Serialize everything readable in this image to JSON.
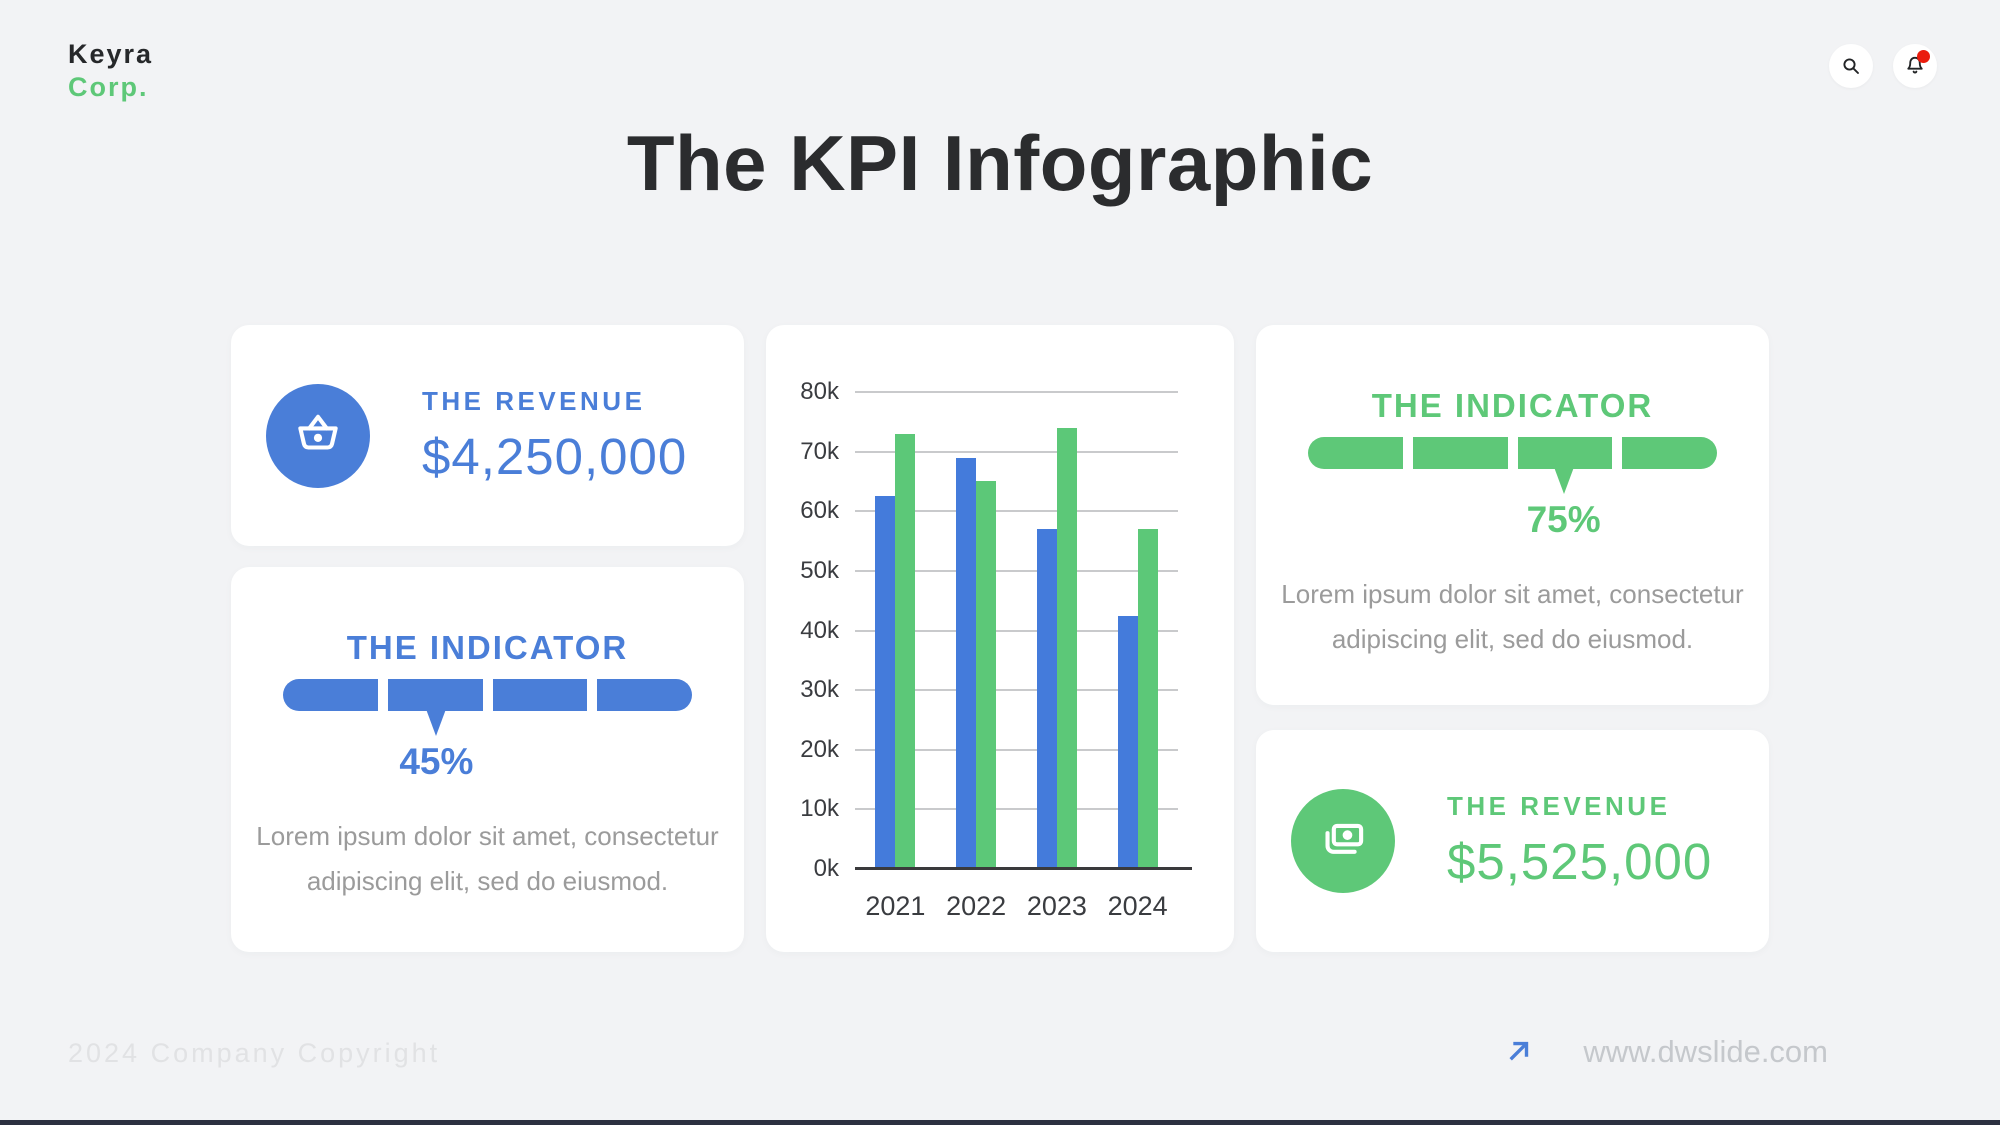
{
  "brand": {
    "line1": "Keyra",
    "line2": "Corp."
  },
  "header": {
    "icons": [
      "search-icon",
      "bell-icon"
    ],
    "has_notification": true
  },
  "title": "The KPI Infographic",
  "cards": {
    "revenue_blue": {
      "label": "THE REVENUE",
      "value": "$4,250,000",
      "icon": "basket-icon",
      "accent": "#4a7ed8"
    },
    "indicator_blue": {
      "label": "THE INDICATOR",
      "percent": "45%",
      "segments": 4,
      "pointer_segment": 2,
      "accent": "#4a7ed8",
      "description_lines": [
        "Lorem ipsum dolor sit amet, consectetur",
        "adipiscing elit, sed do eiusmod."
      ]
    },
    "indicator_green": {
      "label": "THE INDICATOR",
      "percent": "75%",
      "segments": 4,
      "pointer_segment": 3,
      "accent": "#5ec878",
      "description_lines": [
        "Lorem ipsum dolor sit amet, consectetur",
        "adipiscing elit, sed do eiusmod."
      ]
    },
    "revenue_green": {
      "label": "THE REVENUE",
      "value": "$5,525,000",
      "icon": "money-icon",
      "accent": "#5ec878"
    }
  },
  "chart_data": {
    "type": "bar",
    "categories": [
      "2021",
      "2022",
      "2023",
      "2024"
    ],
    "series": [
      {
        "name": "blue",
        "color": "#447bdb",
        "values": [
          62500,
          69000,
          57000,
          42500
        ]
      },
      {
        "name": "green",
        "color": "#5cc878",
        "values": [
          73000,
          65000,
          74000,
          57000
        ]
      }
    ],
    "title": "",
    "xlabel": "",
    "ylabel": "",
    "ylim": [
      0,
      80000
    ],
    "ytick_step": 10000,
    "ytick_labels": [
      "0k",
      "10k",
      "20k",
      "30k",
      "40k",
      "50k",
      "60k",
      "70k",
      "80k"
    ],
    "grid": true,
    "legend": "none"
  },
  "footer": {
    "copyright": "2024 Company Copyright",
    "website": "www.dwslide.com"
  },
  "colors": {
    "background": "#f2f3f5",
    "card": "#ffffff",
    "accent_blue": "#4a7ed8",
    "accent_green": "#5ec878",
    "ink": "#2b2c2e",
    "muted_text": "#9b9b9b",
    "tick_text": "#3a3c40",
    "gridline": "#c9cacc",
    "axis": "#3a3a3c",
    "notification_red": "#ea1c0d",
    "copyright_text": "#e1e2e4",
    "website_text": "#c5c8cc",
    "bottom_bar": "#2c3040"
  }
}
